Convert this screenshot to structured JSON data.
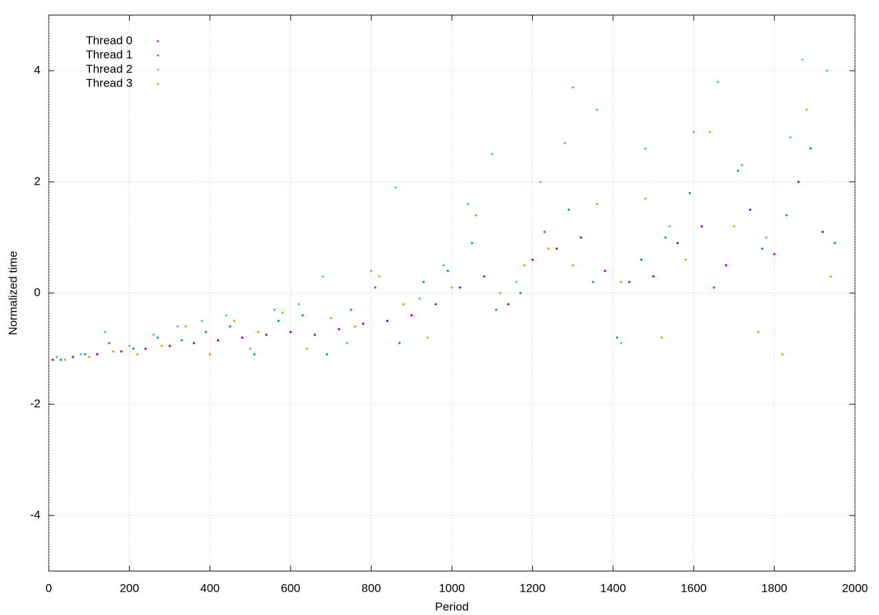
{
  "chart_data": {
    "type": "scatter",
    "xlabel": "Period",
    "ylabel": "Normalized time",
    "xlim": [
      0,
      2000
    ],
    "xticks": [
      0,
      200,
      400,
      600,
      800,
      1000,
      1200,
      1400,
      1600,
      1800,
      2000
    ],
    "ylim": [
      -5,
      5
    ],
    "yticks": [
      -4,
      -2,
      0,
      2,
      4
    ],
    "grid": true,
    "legend": "top-left",
    "series": [
      {
        "name": "Thread 0",
        "color": "#9400d3",
        "x": [
          10,
          60,
          120,
          180,
          240,
          300,
          360,
          420,
          480,
          540,
          600,
          660,
          720,
          780,
          840,
          900,
          960,
          1020,
          1080,
          1140,
          1200,
          1260,
          1320,
          1380,
          1440,
          1500,
          1560,
          1620,
          1680,
          1740,
          1800,
          1860,
          1920
        ],
        "values": [
          -1.2,
          -1.15,
          -1.1,
          -1.05,
          -1.0,
          -0.95,
          -0.9,
          -0.85,
          -0.8,
          -0.75,
          -0.7,
          -0.75,
          -0.65,
          -0.55,
          -0.5,
          -0.4,
          -0.2,
          0.1,
          0.3,
          -0.2,
          0.6,
          0.8,
          1.0,
          0.4,
          0.2,
          0.3,
          0.9,
          1.2,
          0.5,
          1.5,
          0.7,
          2.0,
          1.1
        ]
      },
      {
        "name": "Thread 1",
        "color": "#009e73",
        "x": [
          30,
          90,
          150,
          210,
          270,
          330,
          390,
          450,
          510,
          570,
          630,
          690,
          750,
          810,
          870,
          930,
          990,
          1050,
          1110,
          1170,
          1230,
          1290,
          1350,
          1410,
          1470,
          1530,
          1590,
          1650,
          1710,
          1770,
          1830,
          1890,
          1950
        ],
        "values": [
          -1.2,
          -1.1,
          -0.9,
          -1.0,
          -0.8,
          -0.85,
          -0.7,
          -0.6,
          -1.1,
          -0.5,
          -0.4,
          -1.1,
          -0.3,
          0.1,
          -0.9,
          0.2,
          0.4,
          0.9,
          -0.3,
          0.0,
          1.1,
          1.5,
          0.2,
          -0.8,
          0.6,
          1.0,
          1.8,
          0.1,
          2.2,
          0.8,
          1.4,
          2.6,
          0.9
        ]
      },
      {
        "name": "Thread 2",
        "color": "#56b4e9",
        "x": [
          20,
          80,
          140,
          200,
          260,
          320,
          380,
          440,
          500,
          560,
          620,
          680,
          740,
          800,
          860,
          920,
          980,
          1040,
          1100,
          1160,
          1220,
          1280,
          1300,
          1360,
          1420,
          1480,
          1540,
          1600,
          1660,
          1720,
          1780,
          1840,
          1870,
          1930
        ],
        "values": [
          -1.15,
          -1.1,
          -0.7,
          -0.95,
          -0.75,
          -0.6,
          -0.5,
          -0.4,
          -1.0,
          -0.3,
          -0.2,
          0.3,
          -0.9,
          0.4,
          1.9,
          -0.1,
          0.5,
          1.6,
          2.5,
          0.2,
          2.0,
          2.7,
          3.7,
          3.3,
          -0.9,
          2.6,
          1.2,
          2.9,
          3.8,
          2.3,
          1.0,
          2.8,
          4.2,
          4.0
        ]
      },
      {
        "name": "Thread 3",
        "color": "#e69f00",
        "x": [
          40,
          100,
          160,
          220,
          280,
          340,
          400,
          460,
          520,
          580,
          640,
          700,
          760,
          820,
          880,
          940,
          1000,
          1060,
          1120,
          1180,
          1240,
          1300,
          1360,
          1420,
          1480,
          1520,
          1580,
          1640,
          1700,
          1760,
          1820,
          1880,
          1940
        ],
        "values": [
          -1.2,
          -1.15,
          -1.05,
          -1.1,
          -0.95,
          -0.6,
          -1.1,
          -0.5,
          -0.7,
          -0.35,
          -1.0,
          -0.45,
          -0.6,
          0.3,
          -0.2,
          -0.8,
          0.1,
          1.4,
          0.0,
          0.5,
          0.8,
          0.5,
          1.6,
          0.2,
          1.7,
          -0.8,
          0.6,
          2.9,
          1.2,
          -0.7,
          -1.1,
          3.3,
          0.3
        ]
      }
    ]
  }
}
